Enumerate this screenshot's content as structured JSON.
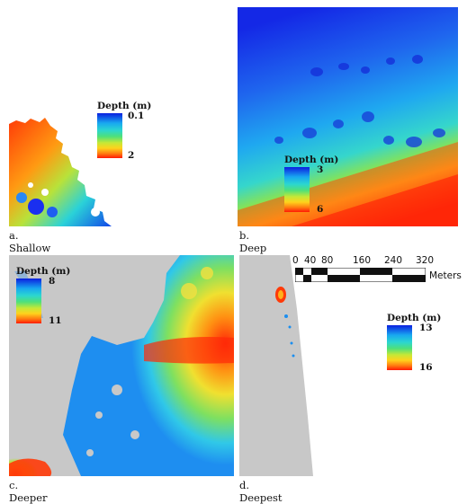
{
  "panels": [
    {
      "caption": "a. Shallow",
      "legend": {
        "title": "Depth (m)",
        "min": "0.1",
        "max": "2"
      }
    },
    {
      "caption": "b. Deep",
      "legend": {
        "title": "Depth (m)",
        "min": "3",
        "max": "6"
      }
    },
    {
      "caption": "c. Deeper",
      "legend": {
        "title": "Depth (m)",
        "min": "8",
        "max": "11"
      }
    },
    {
      "caption": "d. Deepest",
      "legend": {
        "title": "Depth (m)",
        "min": "13",
        "max": "16"
      }
    }
  ],
  "scale_bar": {
    "ticks": [
      "0",
      "40",
      "80",
      "160",
      "240",
      "320"
    ],
    "units": "Meters"
  },
  "colors": {
    "no_data": "#c8c8c8",
    "shallow_end": "#0b1fe0",
    "deep_end": "#ff1a06"
  }
}
